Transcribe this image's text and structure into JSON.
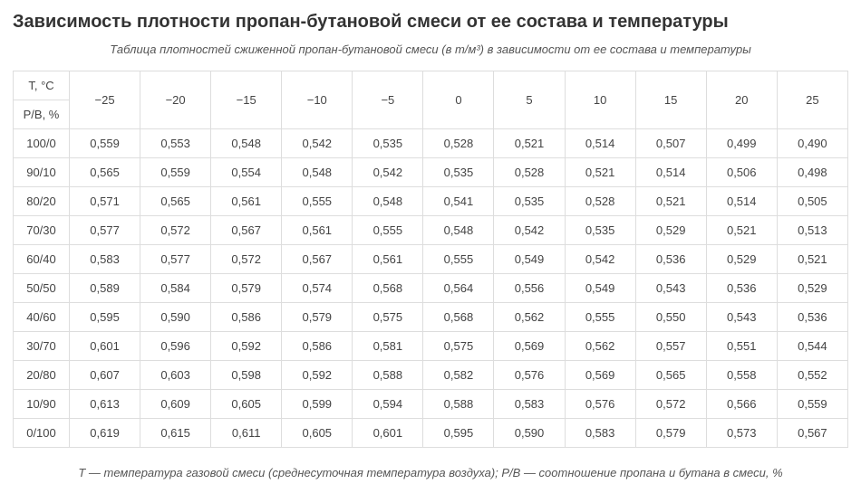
{
  "heading": "Зависимость плотности пропан-бутановой смеси от ее состава и температуры",
  "subtitle": "Таблица плотностей сжиженной пропан-бутановой смеси (в т/м³) в зависимости от ее состава и температуры",
  "footnote": "T — температура газовой смеси (среднесуточная температура воздуха); P/B — соотношение пропана и бутана в смеси, %",
  "table": {
    "type": "table",
    "corner_top_label": "T, °C",
    "corner_bottom_label": "P/B, %",
    "columns": [
      "−25",
      "−20",
      "−15",
      "−10",
      "−5",
      "0",
      "5",
      "10",
      "15",
      "20",
      "25"
    ],
    "row_headers": [
      "100/0",
      "90/10",
      "80/20",
      "70/30",
      "60/40",
      "50/50",
      "40/60",
      "30/70",
      "20/80",
      "10/90",
      "0/100"
    ],
    "rows": [
      [
        "0,559",
        "0,553",
        "0,548",
        "0,542",
        "0,535",
        "0,528",
        "0,521",
        "0,514",
        "0,507",
        "0,499",
        "0,490"
      ],
      [
        "0,565",
        "0,559",
        "0,554",
        "0,548",
        "0,542",
        "0,535",
        "0,528",
        "0,521",
        "0,514",
        "0,506",
        "0,498"
      ],
      [
        "0,571",
        "0,565",
        "0,561",
        "0,555",
        "0,548",
        "0,541",
        "0,535",
        "0,528",
        "0,521",
        "0,514",
        "0,505"
      ],
      [
        "0,577",
        "0,572",
        "0,567",
        "0,561",
        "0,555",
        "0,548",
        "0,542",
        "0,535",
        "0,529",
        "0,521",
        "0,513"
      ],
      [
        "0,583",
        "0,577",
        "0,572",
        "0,567",
        "0,561",
        "0,555",
        "0,549",
        "0,542",
        "0,536",
        "0,529",
        "0,521"
      ],
      [
        "0,589",
        "0,584",
        "0,579",
        "0,574",
        "0,568",
        "0,564",
        "0,556",
        "0,549",
        "0,543",
        "0,536",
        "0,529"
      ],
      [
        "0,595",
        "0,590",
        "0,586",
        "0,579",
        "0,575",
        "0,568",
        "0,562",
        "0,555",
        "0,550",
        "0,543",
        "0,536"
      ],
      [
        "0,601",
        "0,596",
        "0,592",
        "0,586",
        "0,581",
        "0,575",
        "0,569",
        "0,562",
        "0,557",
        "0,551",
        "0,544"
      ],
      [
        "0,607",
        "0,603",
        "0,598",
        "0,592",
        "0,588",
        "0,582",
        "0,576",
        "0,569",
        "0,565",
        "0,558",
        "0,552"
      ],
      [
        "0,613",
        "0,609",
        "0,605",
        "0,599",
        "0,594",
        "0,588",
        "0,583",
        "0,576",
        "0,572",
        "0,566",
        "0,559"
      ],
      [
        "0,619",
        "0,615",
        "0,611",
        "0,605",
        "0,601",
        "0,595",
        "0,590",
        "0,583",
        "0,579",
        "0,573",
        "0,567"
      ]
    ],
    "border_color": "#dddddd",
    "background_color": "#ffffff",
    "text_color": "#444444",
    "cell_fontsize": 13,
    "heading_fontsize": 20,
    "subtitle_fontsize": 13
  }
}
